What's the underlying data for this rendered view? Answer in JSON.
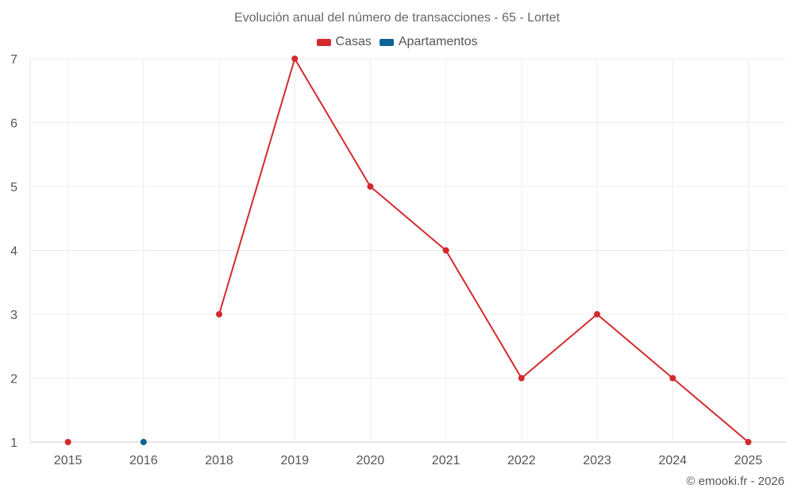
{
  "chart_data": {
    "type": "line",
    "title": "Evolución anual del número de transacciones - 65 - Lortet",
    "categories": [
      "2015",
      "2016",
      "2018",
      "2019",
      "2020",
      "2021",
      "2022",
      "2023",
      "2024",
      "2025"
    ],
    "series": [
      {
        "name": "Casas",
        "color": "#d42a2e",
        "values": [
          1,
          null,
          3,
          7,
          5,
          4,
          2,
          3,
          2,
          1
        ]
      },
      {
        "name": "Apartamentos",
        "color": "#0f6296",
        "values": [
          null,
          1,
          null,
          null,
          null,
          null,
          null,
          null,
          null,
          null
        ]
      }
    ],
    "yticks": [
      "1",
      "2",
      "3",
      "4",
      "5",
      "6",
      "7"
    ],
    "ylim": [
      1,
      7
    ],
    "xlabel": "",
    "ylabel": "",
    "grid": true,
    "legend": "top-center"
  },
  "credit": "© emooki.fr - 2026"
}
